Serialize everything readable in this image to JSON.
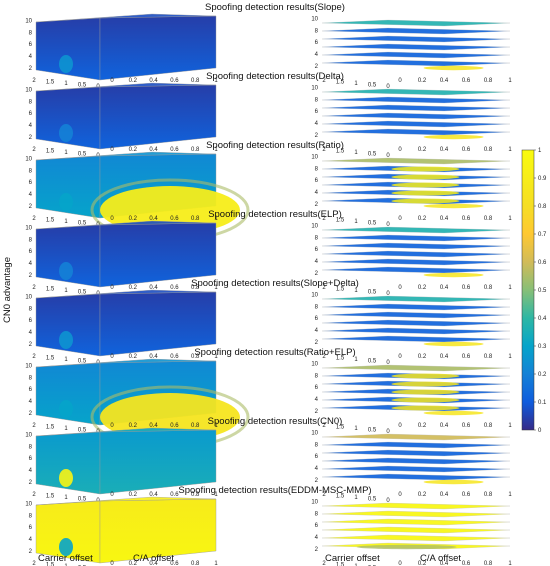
{
  "chart_data": {
    "type": "heatmap",
    "ylabel": "CN0 advantage",
    "xlabel_left": "Carrier offset",
    "xlabel_right": "C/A offset",
    "carrier_offset_ticks": [
      "2",
      "1.5",
      "1",
      "0.5",
      "0"
    ],
    "ca_offset_ticks": [
      "0",
      "0.2",
      "0.4",
      "0.6",
      "0.8",
      "1"
    ],
    "cn0_ticks": [
      "2",
      "4",
      "6",
      "8",
      "10"
    ],
    "colorbar": {
      "min": 0,
      "max": 1,
      "ticks": [
        "0",
        "0.1",
        "0.2",
        "0.3",
        "0.4",
        "0.5",
        "0.6",
        "0.7",
        "0.8",
        "0.9",
        "1"
      ],
      "colormap": "parula"
    },
    "panels": [
      {
        "title": "Spoofing detection results(Slope)",
        "level": 0.12,
        "hot_spot": 0.25,
        "ca_band": 0.0
      },
      {
        "title": "Spoofing detection results(Delta)",
        "level": 0.12,
        "hot_spot": 0.2,
        "ca_band": 0.0
      },
      {
        "title": "Spoofing detection results(Ratio)",
        "level": 0.3,
        "hot_spot": 0.3,
        "ca_band": 0.9
      },
      {
        "title": "Spoofing detection results(ELP)",
        "level": 0.12,
        "hot_spot": 0.2,
        "ca_band": 0.0
      },
      {
        "title": "Spoofing detection results(Slope+Delta)",
        "level": 0.12,
        "hot_spot": 0.25,
        "ca_band": 0.0
      },
      {
        "title": "Spoofing detection results(Ratio+ELP)",
        "level": 0.3,
        "hot_spot": 0.3,
        "ca_band": 0.85
      },
      {
        "title": "Spoofing detection results(CN0)",
        "level": 0.35,
        "hot_spot": 0.95,
        "ca_band": 0.0
      },
      {
        "title": "Spoofing detection results(EDDM-MSC-MMP)",
        "level": 0.97,
        "hot_spot": 0.3,
        "ca_band": 0.0
      }
    ]
  }
}
